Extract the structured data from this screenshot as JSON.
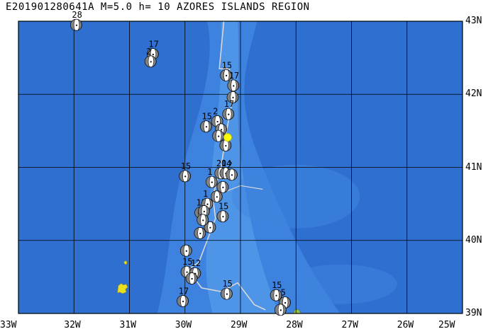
{
  "title": "E201901280641A M=5.0 h= 10 AZORES ISLANDS REGION",
  "colors": {
    "ocean": "#2f6fd0",
    "ocean_light": "#3f86e0",
    "ocean_shallow": "#5aa0ec",
    "grid": "#000000",
    "boundary": "#d8d8d8",
    "island_yellow": "#e8e020",
    "island_green": "#9ac04a",
    "epicenter": "#ffff00",
    "beachball_dark": "#808080"
  },
  "axes": {
    "lon_min": -33,
    "lon_max": -25,
    "lat_min": 39,
    "lat_max": 43,
    "x_ticks": [
      "33W",
      "32W",
      "31W",
      "30W",
      "29W",
      "28W",
      "27W",
      "26W",
      "25W"
    ],
    "y_ticks": [
      "43N",
      "42N",
      "41N",
      "40N",
      "39N"
    ]
  },
  "epicenter": {
    "lon": -29.23,
    "lat": 41.41
  },
  "events": [
    {
      "lon": -31.96,
      "lat": 42.95,
      "label": "28"
    },
    {
      "lon": -30.58,
      "lat": 42.55,
      "label": "17"
    },
    {
      "lon": -30.62,
      "lat": 42.45,
      "label": "2"
    },
    {
      "lon": -29.26,
      "lat": 42.26,
      "label": "15"
    },
    {
      "lon": -29.13,
      "lat": 42.12,
      "label": "17"
    },
    {
      "lon": -29.14,
      "lat": 41.96,
      "label": ""
    },
    {
      "lon": -29.62,
      "lat": 41.56,
      "label": "15"
    },
    {
      "lon": -29.42,
      "lat": 41.63,
      "label": "2"
    },
    {
      "lon": -29.22,
      "lat": 41.73,
      "label": "17"
    },
    {
      "lon": -29.35,
      "lat": 41.52,
      "label": ""
    },
    {
      "lon": -29.27,
      "lat": 41.3,
      "label": ""
    },
    {
      "lon": -29.4,
      "lat": 41.43,
      "label": ""
    },
    {
      "lon": -30.0,
      "lat": 40.88,
      "label": "15"
    },
    {
      "lon": -29.52,
      "lat": 40.8,
      "label": "1"
    },
    {
      "lon": -29.36,
      "lat": 40.92,
      "label": "20"
    },
    {
      "lon": -29.27,
      "lat": 40.92,
      "label": "14"
    },
    {
      "lon": -29.16,
      "lat": 40.9,
      "label": "2"
    },
    {
      "lon": -29.32,
      "lat": 40.73,
      "label": ""
    },
    {
      "lon": -29.43,
      "lat": 40.6,
      "label": ""
    },
    {
      "lon": -29.72,
      "lat": 40.38,
      "label": "13"
    },
    {
      "lon": -29.6,
      "lat": 40.5,
      "label": "1"
    },
    {
      "lon": -29.66,
      "lat": 40.4,
      "label": ""
    },
    {
      "lon": -29.32,
      "lat": 40.33,
      "label": "15"
    },
    {
      "lon": -29.55,
      "lat": 40.18,
      "label": ""
    },
    {
      "lon": -29.68,
      "lat": 40.28,
      "label": ""
    },
    {
      "lon": -29.73,
      "lat": 40.1,
      "label": ""
    },
    {
      "lon": -29.98,
      "lat": 39.86,
      "label": ""
    },
    {
      "lon": -29.97,
      "lat": 39.57,
      "label": "15"
    },
    {
      "lon": -29.82,
      "lat": 39.55,
      "label": "12"
    },
    {
      "lon": -29.88,
      "lat": 39.48,
      "label": ""
    },
    {
      "lon": -30.04,
      "lat": 39.17,
      "label": "17"
    },
    {
      "lon": -29.25,
      "lat": 39.27,
      "label": "15"
    },
    {
      "lon": -28.36,
      "lat": 39.25,
      "label": "15"
    },
    {
      "lon": -28.2,
      "lat": 39.15,
      "label": "5"
    },
    {
      "lon": -28.28,
      "lat": 39.05,
      "label": ""
    }
  ]
}
